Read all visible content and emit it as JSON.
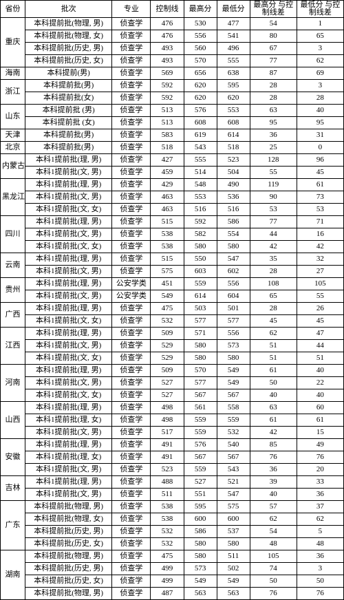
{
  "headers": [
    "省份",
    "批次",
    "专业",
    "控制线",
    "最高分",
    "最低分",
    "最高分\n与控制线差",
    "最低分\n与控制线差"
  ],
  "provinces": [
    {
      "name": "重庆",
      "rows": [
        {
          "batch": "本科提前批(物理, 男)",
          "major": "侦查学",
          "ctrl": 476,
          "max": 530,
          "min": 477,
          "dmax": 54,
          "dmin": 1
        },
        {
          "batch": "本科提前批(物理, 女)",
          "major": "侦查学",
          "ctrl": 476,
          "max": 556,
          "min": 541,
          "dmax": 80,
          "dmin": 65
        },
        {
          "batch": "本科提前批(历史, 男)",
          "major": "侦查学",
          "ctrl": 493,
          "max": 560,
          "min": 496,
          "dmax": 67,
          "dmin": 3
        },
        {
          "batch": "本科提前批(历史, 女)",
          "major": "侦查学",
          "ctrl": 493,
          "max": 570,
          "min": 555,
          "dmax": 77,
          "dmin": 62
        }
      ]
    },
    {
      "name": "海南",
      "rows": [
        {
          "batch": "本科提前(男)",
          "major": "侦查学",
          "ctrl": 569,
          "max": 656,
          "min": 638,
          "dmax": 87,
          "dmin": 69
        }
      ]
    },
    {
      "name": "浙江",
      "rows": [
        {
          "batch": "本科提前批(男)",
          "major": "侦查学",
          "ctrl": 592,
          "max": 620,
          "min": 595,
          "dmax": 28,
          "dmin": 3
        },
        {
          "batch": "本科提前批(女)",
          "major": "侦查学",
          "ctrl": 592,
          "max": 620,
          "min": 620,
          "dmax": 28,
          "dmin": 28
        }
      ]
    },
    {
      "name": "山东",
      "rows": [
        {
          "batch": "本科提前批 (男)",
          "major": "侦查学",
          "ctrl": 513,
          "max": 576,
          "min": 553,
          "dmax": 63,
          "dmin": 40
        },
        {
          "batch": "本科提前批 (女)",
          "major": "侦查学",
          "ctrl": 513,
          "max": 608,
          "min": 608,
          "dmax": 95,
          "dmin": 95
        }
      ]
    },
    {
      "name": "天津",
      "rows": [
        {
          "batch": "本科提前批(男)",
          "major": "侦查学",
          "ctrl": 583,
          "max": 619,
          "min": 614,
          "dmax": 36,
          "dmin": 31
        }
      ]
    },
    {
      "name": "北京",
      "rows": [
        {
          "batch": "本科提前批(男)",
          "major": "侦查学",
          "ctrl": 518,
          "max": 543,
          "min": 518,
          "dmax": 25,
          "dmin": 0
        }
      ]
    },
    {
      "name": "内蒙古",
      "rows": [
        {
          "batch": "本科1提前批(理, 男)",
          "major": "侦查学",
          "ctrl": 427,
          "max": 555,
          "min": 523,
          "dmax": 128,
          "dmin": 96
        },
        {
          "batch": "本科1提前批(文, 男)",
          "major": "侦查学",
          "ctrl": 459,
          "max": 514,
          "min": 504,
          "dmax": 55,
          "dmin": 45
        }
      ]
    },
    {
      "name": "黑龙江",
      "rows": [
        {
          "batch": "本科1提前批(理, 男)",
          "major": "侦查学",
          "ctrl": 429,
          "max": 548,
          "min": 490,
          "dmax": 119,
          "dmin": 61
        },
        {
          "batch": "本科1提前批(文, 男)",
          "major": "侦查学",
          "ctrl": 463,
          "max": 553,
          "min": 536,
          "dmax": 90,
          "dmin": 73
        },
        {
          "batch": "本科1提前批(文, 女)",
          "major": "侦查学",
          "ctrl": 463,
          "max": 516,
          "min": 516,
          "dmax": 53,
          "dmin": 53
        }
      ]
    },
    {
      "name": "四川",
      "rows": [
        {
          "batch": "本科1提前批(理, 男)",
          "major": "侦查学",
          "ctrl": 515,
          "max": 592,
          "min": 586,
          "dmax": 77,
          "dmin": 71
        },
        {
          "batch": "本科1提前批(文, 男)",
          "major": "侦查学",
          "ctrl": 538,
          "max": 582,
          "min": 554,
          "dmax": 44,
          "dmin": 16
        },
        {
          "batch": "本科1提前批(文, 女)",
          "major": "侦查学",
          "ctrl": 538,
          "max": 580,
          "min": 580,
          "dmax": 42,
          "dmin": 42
        }
      ]
    },
    {
      "name": "云南",
      "rows": [
        {
          "batch": "本科1提前批(理, 男)",
          "major": "侦查学",
          "ctrl": 515,
          "max": 550,
          "min": 547,
          "dmax": 35,
          "dmin": 32
        },
        {
          "batch": "本科1提前批(文, 男)",
          "major": "侦查学",
          "ctrl": 575,
          "max": 603,
          "min": 602,
          "dmax": 28,
          "dmin": 27
        }
      ]
    },
    {
      "name": "贵州",
      "rows": [
        {
          "batch": "本科1提前批(理, 男)",
          "major": "公安学类",
          "ctrl": 451,
          "max": 559,
          "min": 556,
          "dmax": 108,
          "dmin": 105
        },
        {
          "batch": "本科1提前批(文, 男)",
          "major": "公安学类",
          "ctrl": 549,
          "max": 614,
          "min": 604,
          "dmax": 65,
          "dmin": 55
        }
      ]
    },
    {
      "name": "广西",
      "rows": [
        {
          "batch": "本科1提前批(理, 男)",
          "major": "侦查学",
          "ctrl": 475,
          "max": 503,
          "min": 501,
          "dmax": 28,
          "dmin": 26
        },
        {
          "batch": "本科1提前批(文, 女)",
          "major": "侦查学",
          "ctrl": 532,
          "max": 577,
          "min": 577,
          "dmax": 45,
          "dmin": 45
        }
      ]
    },
    {
      "name": "江西",
      "rows": [
        {
          "batch": "本科1提前批(理, 男)",
          "major": "侦查学",
          "ctrl": 509,
          "max": 571,
          "min": 556,
          "dmax": 62,
          "dmin": 47
        },
        {
          "batch": "本科1提前批(文, 男)",
          "major": "侦查学",
          "ctrl": 529,
          "max": 580,
          "min": 573,
          "dmax": 51,
          "dmin": 44
        },
        {
          "batch": "本科1提前批(文, 女)",
          "major": "侦查学",
          "ctrl": 529,
          "max": 580,
          "min": 580,
          "dmax": 51,
          "dmin": 51
        }
      ]
    },
    {
      "name": "河南",
      "rows": [
        {
          "batch": "本科1提前批(理, 男)",
          "major": "侦查学",
          "ctrl": 509,
          "max": 570,
          "min": 549,
          "dmax": 61,
          "dmin": 40
        },
        {
          "batch": "本科1提前批(文, 男)",
          "major": "侦查学",
          "ctrl": 527,
          "max": 577,
          "min": 549,
          "dmax": 50,
          "dmin": 22
        },
        {
          "batch": "本科1提前批(文, 女)",
          "major": "侦查学",
          "ctrl": 527,
          "max": 567,
          "min": 567,
          "dmax": 40,
          "dmin": 40
        }
      ]
    },
    {
      "name": "山西",
      "rows": [
        {
          "batch": "本科1提前批(理, 男)",
          "major": "侦查学",
          "ctrl": 498,
          "max": 561,
          "min": 558,
          "dmax": 63,
          "dmin": 60
        },
        {
          "batch": "本科1提前批(理, 女)",
          "major": "侦查学",
          "ctrl": 498,
          "max": 559,
          "min": 559,
          "dmax": 61,
          "dmin": 61
        },
        {
          "batch": "本科1提前批(文, 男)",
          "major": "侦查学",
          "ctrl": 517,
          "max": 559,
          "min": 532,
          "dmax": 42,
          "dmin": 15
        }
      ]
    },
    {
      "name": "安徽",
      "rows": [
        {
          "batch": "本科1提前批(理, 男)",
          "major": "侦查学",
          "ctrl": 491,
          "max": 576,
          "min": 540,
          "dmax": 85,
          "dmin": 49
        },
        {
          "batch": "本科1提前批(理, 女)",
          "major": "侦查学",
          "ctrl": 491,
          "max": 567,
          "min": 567,
          "dmax": 76,
          "dmin": 76
        },
        {
          "batch": "本科1提前批(文, 男)",
          "major": "侦查学",
          "ctrl": 523,
          "max": 559,
          "min": 543,
          "dmax": 36,
          "dmin": 20
        }
      ]
    },
    {
      "name": "吉林",
      "rows": [
        {
          "batch": "本科1提前批(理, 男)",
          "major": "侦查学",
          "ctrl": 488,
          "max": 527,
          "min": 521,
          "dmax": 39,
          "dmin": 33
        },
        {
          "batch": "本科1提前批(文, 男)",
          "major": "侦查学",
          "ctrl": 511,
          "max": 551,
          "min": 547,
          "dmax": 40,
          "dmin": 36
        }
      ]
    },
    {
      "name": "广东",
      "rows": [
        {
          "batch": "本科提前批(物理, 男)",
          "major": "侦查学",
          "ctrl": 538,
          "max": 595,
          "min": 575,
          "dmax": 57,
          "dmin": 37
        },
        {
          "batch": "本科提前批(物理, 女)",
          "major": "侦查学",
          "ctrl": 538,
          "max": 600,
          "min": 600,
          "dmax": 62,
          "dmin": 62
        },
        {
          "batch": "本科提前批(历史, 男)",
          "major": "侦查学",
          "ctrl": 532,
          "max": 586,
          "min": 537,
          "dmax": 54,
          "dmin": 5
        },
        {
          "batch": "本科提前批(历史, 女)",
          "major": "侦查学",
          "ctrl": 532,
          "max": 580,
          "min": 580,
          "dmax": 48,
          "dmin": 48
        }
      ]
    },
    {
      "name": "湖南",
      "rows": [
        {
          "batch": "本科提前批(物理, 男)",
          "major": "侦查学",
          "ctrl": 475,
          "max": 580,
          "min": 511,
          "dmax": 105,
          "dmin": 36
        },
        {
          "batch": "本科提前批(历史, 男)",
          "major": "侦查学",
          "ctrl": 499,
          "max": 573,
          "min": 502,
          "dmax": 74,
          "dmin": 3
        },
        {
          "batch": "本科提前批(历史, 女)",
          "major": "侦查学",
          "ctrl": 499,
          "max": 549,
          "min": 549,
          "dmax": 50,
          "dmin": 50
        },
        {
          "batch": "本科提前批(物理, 男)",
          "major": "侦查学",
          "ctrl": 487,
          "max": 563,
          "min": 563,
          "dmax": 76,
          "dmin": 76
        }
      ]
    }
  ]
}
